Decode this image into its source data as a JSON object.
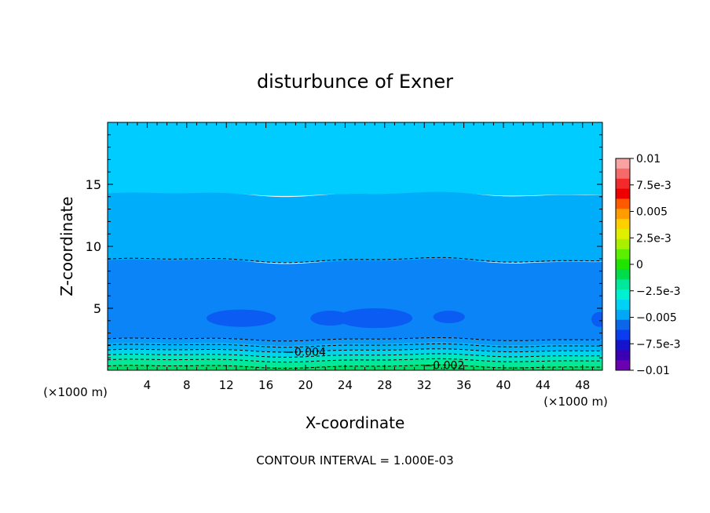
{
  "chart_data": {
    "type": "heatmap",
    "title": "disturbunce of Exner",
    "xlabel": "X-coordinate",
    "ylabel": "Z-coordinate",
    "x_unit_left": "(×1000 m)",
    "x_unit_right": "(×1000 m)",
    "xlim": [
      0,
      50
    ],
    "ylim": [
      0,
      20
    ],
    "x_ticks": [
      "4",
      "8",
      "12",
      "16",
      "20",
      "24",
      "28",
      "32",
      "36",
      "40",
      "44",
      "48"
    ],
    "y_ticks": [
      "5",
      "10",
      "15"
    ],
    "footer": "CONTOUR INTERVAL = 1.000E-03",
    "colorbar": {
      "tick_labels": [
        "0.01",
        "7.5e-3",
        "0.005",
        "2.5e-3",
        "0",
        "−2.5e-3",
        "−0.005",
        "−7.5e-3",
        "−0.01"
      ],
      "range": [
        -0.01,
        0.01
      ],
      "colors": [
        "#f9a2a2",
        "#f76a6a",
        "#f22a2a",
        "#ee0000",
        "#ff5a00",
        "#ff9c00",
        "#ffcf00",
        "#e0ee00",
        "#a8f000",
        "#5aee00",
        "#1ee400",
        "#00dc4a",
        "#00e89c",
        "#00f0d2",
        "#00d2f5",
        "#00a8f5",
        "#0c66e8",
        "#0a3cf0",
        "#1414cc",
        "#3c00b4",
        "#6a00b0"
      ]
    },
    "bands": [
      {
        "z_top": 20.0,
        "z_bottom": 14.2,
        "color": "#00ccff"
      },
      {
        "z_top": 14.2,
        "z_bottom": 8.8,
        "color": "#00adfa"
      },
      {
        "z_top": 8.8,
        "z_bottom": 2.5,
        "color": "#0a84f6"
      },
      {
        "z_top": 2.5,
        "z_bottom": 2.1,
        "color": "#0b98f6"
      },
      {
        "z_top": 2.1,
        "z_bottom": 1.6,
        "color": "#00b4f6"
      },
      {
        "z_top": 1.6,
        "z_bottom": 1.2,
        "color": "#00d4e8"
      },
      {
        "z_top": 1.2,
        "z_bottom": 0.8,
        "color": "#00e6c0"
      },
      {
        "z_top": 0.8,
        "z_bottom": 0.4,
        "color": "#00e89a"
      },
      {
        "z_top": 0.4,
        "z_bottom": 0.0,
        "color": "#00dc6e"
      }
    ],
    "low_patches": [
      {
        "x": 13.5,
        "z": 4.2,
        "rx": 3.5,
        "rz": 0.7
      },
      {
        "x": 27.0,
        "z": 4.2,
        "rx": 3.8,
        "rz": 0.8
      },
      {
        "x": 22.5,
        "z": 4.2,
        "rx": 2.0,
        "rz": 0.6
      },
      {
        "x": 34.5,
        "z": 4.3,
        "rx": 1.6,
        "rz": 0.5
      },
      {
        "x": 49.7,
        "z": 4.1,
        "rx": 0.8,
        "rz": 0.6
      }
    ],
    "contours": [
      {
        "z": 8.9,
        "label": ""
      },
      {
        "z": 2.5,
        "label": ""
      },
      {
        "z": 2.0,
        "label": ""
      },
      {
        "z": 1.6,
        "label": "−0.004"
      },
      {
        "z": 1.2,
        "label": ""
      },
      {
        "z": 0.8,
        "label": ""
      },
      {
        "z": 0.3,
        "label": "−0.002"
      }
    ]
  }
}
